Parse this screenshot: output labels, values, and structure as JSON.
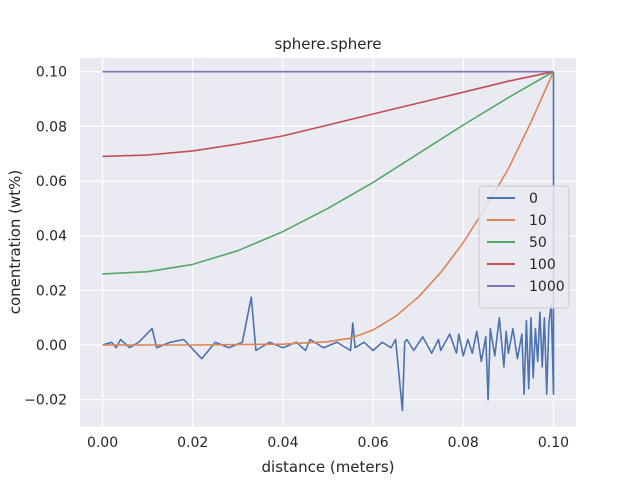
{
  "chart_data": {
    "type": "line",
    "title": "sphere.sphere",
    "xlabel": "distance (meters)",
    "ylabel": "conentration (wt%)",
    "xlim": [
      -0.005,
      0.105
    ],
    "ylim": [
      -0.03,
      0.105
    ],
    "xticks": [
      0.0,
      0.02,
      0.04,
      0.06,
      0.08,
      0.1
    ],
    "xtick_labels": [
      "0.00",
      "0.02",
      "0.04",
      "0.06",
      "0.08",
      "0.10"
    ],
    "yticks": [
      -0.02,
      0.0,
      0.02,
      0.04,
      0.06,
      0.08,
      0.1
    ],
    "ytick_labels": [
      "−0.02",
      "0.00",
      "0.02",
      "0.04",
      "0.06",
      "0.08",
      "0.10"
    ],
    "grid": true,
    "legend_position": "center-right",
    "background": "#eaeaf2",
    "series": [
      {
        "name": "0",
        "color": "#4c72b0",
        "x": [
          0.0,
          0.002,
          0.003,
          0.004,
          0.006,
          0.008,
          0.011,
          0.012,
          0.015,
          0.018,
          0.022,
          0.025,
          0.028,
          0.031,
          0.033,
          0.034,
          0.037,
          0.04,
          0.043,
          0.045,
          0.046,
          0.049,
          0.052,
          0.055,
          0.0555,
          0.056,
          0.058,
          0.06,
          0.062,
          0.064,
          0.065,
          0.0665,
          0.067,
          0.0675,
          0.069,
          0.071,
          0.073,
          0.0745,
          0.075,
          0.077,
          0.0785,
          0.079,
          0.08,
          0.081,
          0.082,
          0.083,
          0.084,
          0.085,
          0.0855,
          0.086,
          0.087,
          0.088,
          0.089,
          0.0895,
          0.09,
          0.091,
          0.092,
          0.093,
          0.0935,
          0.094,
          0.0945,
          0.095,
          0.0955,
          0.096,
          0.0965,
          0.097,
          0.0975,
          0.098,
          0.0985,
          0.099,
          0.0995,
          0.1,
          0.1,
          0.1
        ],
        "y": [
          0.0,
          0.001,
          -0.001,
          0.002,
          -0.001,
          0.001,
          0.006,
          -0.001,
          0.001,
          0.002,
          -0.005,
          0.001,
          -0.001,
          0.001,
          0.0175,
          -0.002,
          0.001,
          -0.001,
          0.001,
          -0.002,
          0.002,
          -0.001,
          0.001,
          -0.002,
          0.008,
          -0.001,
          0.001,
          -0.002,
          0.001,
          -0.001,
          0.002,
          -0.024,
          0.001,
          0.002,
          -0.002,
          0.003,
          -0.003,
          0.002,
          -0.002,
          0.004,
          -0.003,
          0.004,
          -0.004,
          0.002,
          -0.003,
          0.005,
          -0.006,
          0.003,
          -0.02,
          0.006,
          -0.004,
          0.01,
          -0.008,
          0.005,
          -0.003,
          0.006,
          -0.005,
          0.004,
          -0.018,
          0.009,
          -0.016,
          0.01,
          -0.012,
          0.006,
          -0.006,
          0.012,
          -0.008,
          0.01,
          -0.018,
          0.008,
          0.015,
          -0.018,
          0.1,
          0.1
        ]
      },
      {
        "name": "10",
        "color": "#dd8452",
        "x": [
          0.0,
          0.02,
          0.04,
          0.05,
          0.055,
          0.06,
          0.065,
          0.07,
          0.075,
          0.08,
          0.085,
          0.09,
          0.095,
          0.1
        ],
        "y": [
          0.0,
          0.0,
          0.0003,
          0.0012,
          0.0025,
          0.0055,
          0.0105,
          0.0175,
          0.0265,
          0.0375,
          0.0505,
          0.0645,
          0.0815,
          0.1
        ]
      },
      {
        "name": "50",
        "color": "#55a868",
        "x": [
          0.0,
          0.01,
          0.02,
          0.03,
          0.04,
          0.05,
          0.06,
          0.07,
          0.08,
          0.09,
          0.1
        ],
        "y": [
          0.026,
          0.0268,
          0.0295,
          0.0345,
          0.0415,
          0.05,
          0.0595,
          0.07,
          0.0805,
          0.0905,
          0.1
        ]
      },
      {
        "name": "100",
        "color": "#c44e52",
        "x": [
          0.0,
          0.01,
          0.02,
          0.03,
          0.04,
          0.05,
          0.06,
          0.07,
          0.08,
          0.09,
          0.1
        ],
        "y": [
          0.069,
          0.0695,
          0.071,
          0.0735,
          0.0765,
          0.0805,
          0.0845,
          0.0885,
          0.0925,
          0.0965,
          0.1
        ]
      },
      {
        "name": "1000",
        "color": "#8172b3",
        "x": [
          0.0,
          0.1
        ],
        "y": [
          0.1,
          0.1
        ]
      }
    ]
  }
}
